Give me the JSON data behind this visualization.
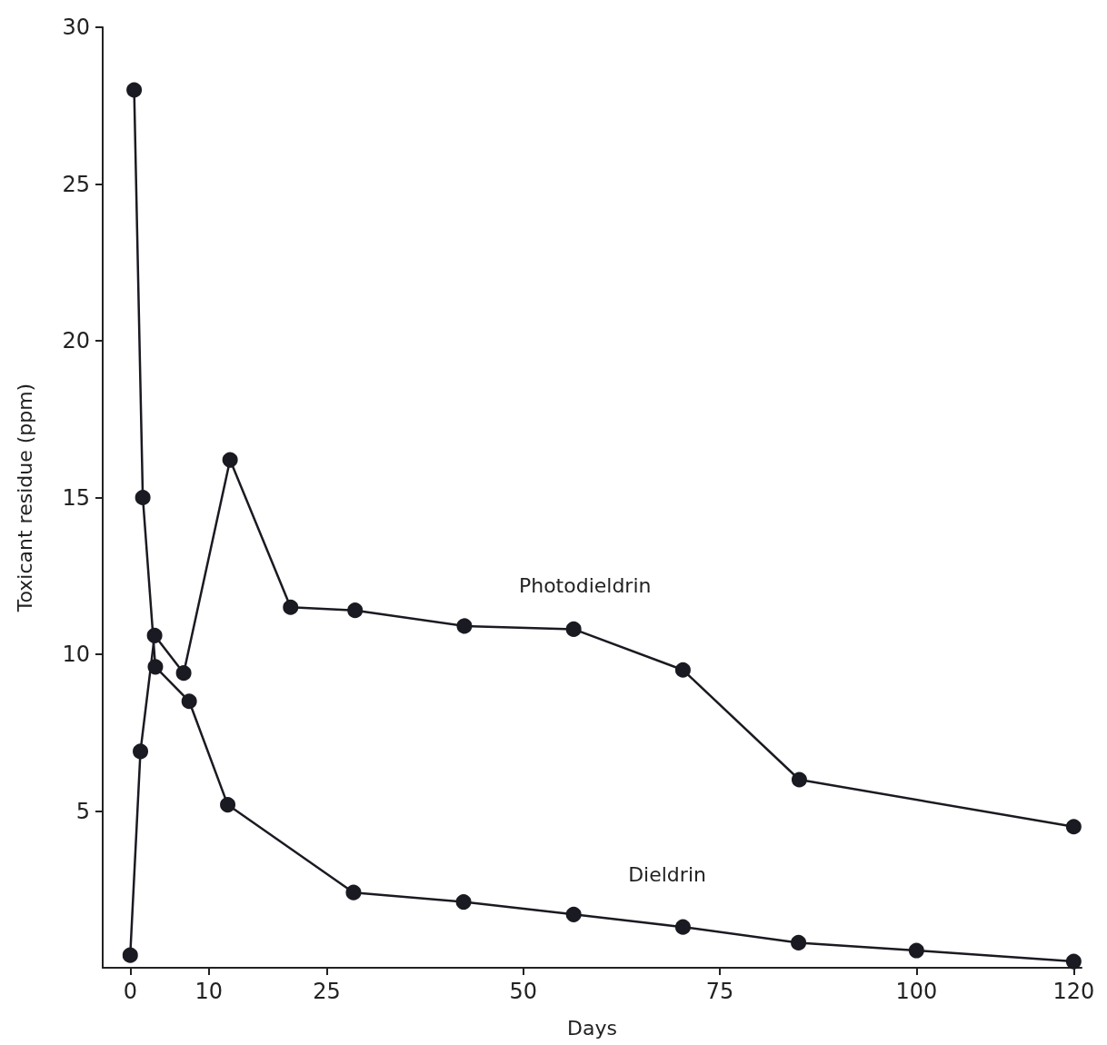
{
  "chart_data": {
    "type": "line",
    "xlabel": "Days",
    "ylabel": "Toxicant residue (ppm)",
    "xlim": [
      -3.5,
      121
    ],
    "xticks": [
      0,
      10,
      25,
      50,
      75,
      100,
      120
    ],
    "ylim": [
      0,
      30
    ],
    "yticks": [
      5,
      10,
      15,
      20,
      25,
      30
    ],
    "grid": false,
    "legend": false,
    "marker": "circle",
    "line_style": "solid",
    "series": [
      {
        "name": "Photodieldrin",
        "color": "#1a1a22",
        "x": [
          0,
          1.3,
          3.1,
          6.8,
          12.7,
          20.4,
          28.6,
          42.5,
          56.4,
          70.3,
          85.1,
          120
        ],
        "values": [
          0.4,
          6.9,
          10.6,
          9.4,
          16.2,
          11.5,
          11.4,
          10.9,
          10.8,
          9.5,
          6.0,
          4.5
        ]
      },
      {
        "name": "Dieldrin",
        "color": "#1a1a22",
        "x": [
          0.5,
          1.6,
          3.2,
          7.5,
          12.4,
          28.4,
          42.4,
          56.4,
          70.3,
          85,
          100,
          120
        ],
        "values": [
          28,
          15,
          9.6,
          8.5,
          5.2,
          2.4,
          2.1,
          1.7,
          1.3,
          0.8,
          0.55,
          0.2
        ]
      }
    ]
  }
}
